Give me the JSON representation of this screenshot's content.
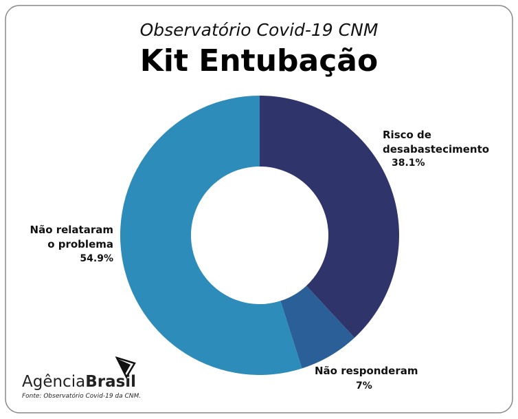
{
  "chart_data": {
    "type": "pie",
    "donut": true,
    "subtitle": "Observatório Covid-19 CNM",
    "title": "Kit Entubação",
    "categories": [
      "Risco de desabastecimento",
      "Não responderam",
      "Não relataram o problema"
    ],
    "values": [
      38.1,
      7,
      54.9
    ],
    "value_labels": [
      "38.1%",
      "7%",
      "54.9%"
    ],
    "colors": [
      "#2f346a",
      "#2b5f97",
      "#2e8cbb"
    ]
  },
  "footer": {
    "logo_light": "Agência",
    "logo_bold": "Brasil",
    "source": "Fonte: Observatório Covid-19 da CNM."
  }
}
